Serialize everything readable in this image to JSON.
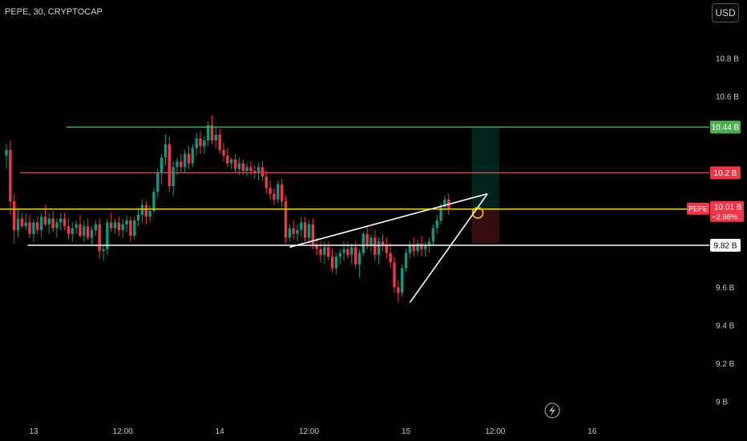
{
  "header": {
    "title": "PEPE, 30, CRYPTOCAP",
    "currency_button": "USD"
  },
  "chart_data": {
    "type": "candlestick",
    "symbol": "PEPE",
    "interval": "30",
    "source": "CRYPTOCAP",
    "unit": "USD",
    "ylim": [
      8.92,
      10.98
    ],
    "y_ticks": [
      {
        "value": 9.0,
        "label": "9 B"
      },
      {
        "value": 9.2,
        "label": "9.2 B"
      },
      {
        "value": 9.4,
        "label": "9.4 B"
      },
      {
        "value": 9.6,
        "label": "9.6 B"
      },
      {
        "value": 10.6,
        "label": "10.6 B"
      },
      {
        "value": 10.8,
        "label": "10.8 B"
      }
    ],
    "x_ticks": [
      {
        "pos": 7,
        "label": "13"
      },
      {
        "pos": 30,
        "label": "12:00"
      },
      {
        "pos": 55,
        "label": "14"
      },
      {
        "pos": 78,
        "label": "12:00"
      },
      {
        "pos": 103,
        "label": "15"
      },
      {
        "pos": 126,
        "label": "12:00"
      },
      {
        "pos": 151,
        "label": "16"
      }
    ],
    "horizontal_levels": [
      {
        "value": 10.44,
        "label": "10.44 B",
        "color": "#4caf50",
        "from": 15.5
      },
      {
        "value": 10.2,
        "label": "10.2 B",
        "color": "#f23645",
        "from": 3.5
      },
      {
        "value": 10.01,
        "label": "10.01 B",
        "color": "#f5d000",
        "from": -2
      },
      {
        "value": 9.82,
        "label": "9.82 B",
        "color": "#ffffff",
        "from": 5.5
      }
    ],
    "price_tag": {
      "symbol": "PEPE",
      "value": "10.01 B",
      "change": "−2.98%",
      "color": "#f23645"
    },
    "trendlines": [
      {
        "x1": 73,
        "y1": 9.81,
        "x2": 124,
        "y2": 10.09
      },
      {
        "x1": 104,
        "y1": 9.52,
        "x2": 124,
        "y2": 10.09
      }
    ],
    "position": {
      "x1": 120,
      "x2": 127,
      "entry": 10.01,
      "target": 10.44,
      "stop": 9.83
    },
    "marker": {
      "x": 121.5,
      "value": 9.99
    },
    "candles": [
      [
        10.29,
        10.35,
        10.22,
        10.32
      ],
      [
        10.32,
        10.37,
        9.98,
        10.05
      ],
      [
        10.05,
        10.09,
        9.83,
        9.9
      ],
      [
        9.9,
        10.01,
        9.86,
        9.96
      ],
      [
        9.96,
        9.99,
        9.91,
        9.92
      ],
      [
        9.92,
        9.99,
        9.9,
        9.94
      ],
      [
        9.94,
        9.98,
        9.86,
        9.88
      ],
      [
        9.88,
        9.96,
        9.84,
        9.94
      ],
      [
        9.94,
        9.97,
        9.88,
        9.9
      ],
      [
        9.9,
        9.99,
        9.86,
        9.97
      ],
      [
        9.97,
        10.03,
        9.92,
        9.93
      ],
      [
        9.93,
        9.99,
        9.88,
        9.96
      ],
      [
        9.96,
        10.0,
        9.89,
        9.91
      ],
      [
        9.91,
        9.96,
        9.86,
        9.94
      ],
      [
        9.94,
        9.99,
        9.9,
        9.96
      ],
      [
        9.96,
        9.99,
        9.9,
        9.92
      ],
      [
        9.92,
        9.96,
        9.85,
        9.88
      ],
      [
        9.88,
        9.94,
        9.84,
        9.91
      ],
      [
        9.91,
        9.95,
        9.88,
        9.93
      ],
      [
        9.93,
        9.98,
        9.86,
        9.87
      ],
      [
        9.87,
        9.95,
        9.84,
        9.92
      ],
      [
        9.92,
        9.96,
        9.85,
        9.86
      ],
      [
        9.86,
        9.92,
        9.82,
        9.9
      ],
      [
        9.9,
        9.95,
        9.87,
        9.93
      ],
      [
        9.93,
        9.96,
        9.75,
        9.79
      ],
      [
        9.79,
        9.82,
        9.74,
        9.8
      ],
      [
        9.8,
        9.96,
        9.77,
        9.94
      ],
      [
        9.94,
        9.99,
        9.89,
        9.91
      ],
      [
        9.91,
        9.96,
        9.88,
        9.94
      ],
      [
        9.94,
        9.97,
        9.87,
        9.9
      ],
      [
        9.9,
        9.96,
        9.86,
        9.93
      ],
      [
        9.93,
        9.98,
        9.89,
        9.95
      ],
      [
        9.95,
        9.97,
        9.84,
        9.87
      ],
      [
        9.87,
        9.97,
        9.85,
        9.95
      ],
      [
        9.95,
        10.02,
        9.92,
        9.98
      ],
      [
        9.98,
        10.06,
        9.94,
        10.03
      ],
      [
        10.03,
        10.05,
        9.93,
        9.97
      ],
      [
        9.97,
        10.03,
        9.94,
        10.0
      ],
      [
        10.0,
        10.12,
        9.99,
        10.1
      ],
      [
        10.1,
        10.22,
        10.07,
        10.2
      ],
      [
        10.2,
        10.3,
        10.14,
        10.28
      ],
      [
        10.28,
        10.4,
        10.24,
        10.35
      ],
      [
        10.35,
        10.39,
        10.1,
        10.13
      ],
      [
        10.13,
        10.26,
        10.08,
        10.23
      ],
      [
        10.23,
        10.28,
        10.19,
        10.26
      ],
      [
        10.26,
        10.3,
        10.2,
        10.23
      ],
      [
        10.23,
        10.32,
        10.2,
        10.3
      ],
      [
        10.3,
        10.34,
        10.22,
        10.25
      ],
      [
        10.25,
        10.35,
        10.23,
        10.33
      ],
      [
        10.33,
        10.41,
        10.29,
        10.38
      ],
      [
        10.38,
        10.42,
        10.3,
        10.34
      ],
      [
        10.34,
        10.39,
        10.3,
        10.37
      ],
      [
        10.37,
        10.47,
        10.34,
        10.45
      ],
      [
        10.45,
        10.5,
        10.35,
        10.37
      ],
      [
        10.37,
        10.44,
        10.33,
        10.4
      ],
      [
        10.4,
        10.43,
        10.3,
        10.32
      ],
      [
        10.32,
        10.36,
        10.26,
        10.29
      ],
      [
        10.29,
        10.33,
        10.23,
        10.25
      ],
      [
        10.25,
        10.28,
        10.22,
        10.27
      ],
      [
        10.27,
        10.3,
        10.2,
        10.22
      ],
      [
        10.22,
        10.28,
        10.19,
        10.25
      ],
      [
        10.25,
        10.27,
        10.19,
        10.21
      ],
      [
        10.21,
        10.25,
        10.18,
        10.23
      ],
      [
        10.23,
        10.26,
        10.19,
        10.21
      ],
      [
        10.21,
        10.24,
        10.17,
        10.2
      ],
      [
        10.2,
        10.25,
        10.16,
        10.23
      ],
      [
        10.23,
        10.26,
        10.16,
        10.18
      ],
      [
        10.18,
        10.21,
        10.09,
        10.12
      ],
      [
        10.12,
        10.16,
        10.06,
        10.09
      ],
      [
        10.09,
        10.12,
        10.03,
        10.06
      ],
      [
        10.06,
        10.16,
        10.04,
        10.14
      ],
      [
        10.14,
        10.17,
        10.02,
        10.05
      ],
      [
        10.05,
        10.08,
        9.83,
        9.86
      ],
      [
        9.86,
        9.93,
        9.84,
        9.91
      ],
      [
        9.91,
        9.95,
        9.85,
        9.88
      ],
      [
        9.88,
        9.93,
        9.84,
        9.9
      ],
      [
        9.9,
        9.97,
        9.86,
        9.94
      ],
      [
        9.94,
        9.97,
        9.84,
        9.86
      ],
      [
        9.86,
        9.95,
        9.83,
        9.93
      ],
      [
        9.93,
        9.96,
        9.8,
        9.82
      ],
      [
        9.82,
        9.86,
        9.77,
        9.8
      ],
      [
        9.8,
        9.84,
        9.73,
        9.77
      ],
      [
        9.77,
        9.84,
        9.72,
        9.81
      ],
      [
        9.81,
        9.84,
        9.74,
        9.76
      ],
      [
        9.76,
        9.8,
        9.68,
        9.7
      ],
      [
        9.7,
        9.78,
        9.67,
        9.76
      ],
      [
        9.76,
        9.8,
        9.72,
        9.78
      ],
      [
        9.78,
        9.84,
        9.74,
        9.8
      ],
      [
        9.8,
        9.84,
        9.75,
        9.77
      ],
      [
        9.77,
        9.83,
        9.72,
        9.81
      ],
      [
        9.81,
        9.84,
        9.7,
        9.72
      ],
      [
        9.72,
        9.8,
        9.65,
        9.78
      ],
      [
        9.78,
        9.89,
        9.76,
        9.88
      ],
      [
        9.88,
        9.92,
        9.8,
        9.82
      ],
      [
        9.82,
        9.88,
        9.78,
        9.86
      ],
      [
        9.86,
        9.9,
        9.74,
        9.77
      ],
      [
        9.77,
        9.86,
        9.72,
        9.84
      ],
      [
        9.84,
        9.88,
        9.79,
        9.82
      ],
      [
        9.82,
        9.86,
        9.75,
        9.78
      ],
      [
        9.78,
        9.83,
        9.7,
        9.73
      ],
      [
        9.73,
        9.76,
        9.57,
        9.6
      ],
      [
        9.6,
        9.64,
        9.52,
        9.57
      ],
      [
        9.57,
        9.72,
        9.55,
        9.7
      ],
      [
        9.7,
        9.8,
        9.68,
        9.78
      ],
      [
        9.78,
        9.84,
        9.75,
        9.82
      ],
      [
        9.82,
        9.86,
        9.76,
        9.79
      ],
      [
        9.79,
        9.85,
        9.77,
        9.83
      ],
      [
        9.83,
        9.87,
        9.76,
        9.8
      ],
      [
        9.8,
        9.84,
        9.76,
        9.82
      ],
      [
        9.82,
        9.86,
        9.78,
        9.84
      ],
      [
        9.84,
        9.93,
        9.82,
        9.91
      ],
      [
        9.91,
        9.98,
        9.88,
        9.95
      ],
      [
        9.95,
        10.04,
        9.93,
        10.02
      ],
      [
        10.02,
        10.08,
        10.0,
        10.06
      ],
      [
        10.06,
        10.09,
        9.98,
        10.01
      ]
    ]
  },
  "icons": {
    "bolt": "lightning-icon"
  }
}
